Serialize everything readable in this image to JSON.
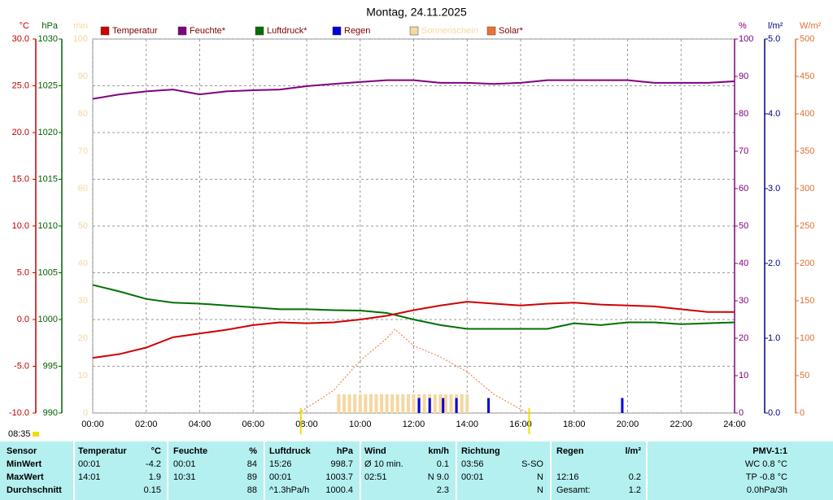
{
  "chart_data": {
    "type": "line",
    "title": "Montag, 24.11.2025",
    "x": [
      0,
      1,
      2,
      3,
      4,
      5,
      6,
      7,
      8,
      9,
      10,
      11,
      12,
      13,
      14,
      15,
      16,
      17,
      18,
      19,
      20,
      21,
      22,
      23,
      24
    ],
    "xlim": [
      0,
      24
    ],
    "xticks": [
      {
        "value": 0,
        "label": "00:00"
      },
      {
        "value": 2,
        "label": "02:00"
      },
      {
        "value": 4,
        "label": "04:00"
      },
      {
        "value": 6,
        "label": "06:00"
      },
      {
        "value": 8,
        "label": "08:00"
      },
      {
        "value": 10,
        "label": "10:00"
      },
      {
        "value": 12,
        "label": "12:00"
      },
      {
        "value": 14,
        "label": "14:00"
      },
      {
        "value": 16,
        "label": "16:00"
      },
      {
        "value": 18,
        "label": "18:00"
      },
      {
        "value": 20,
        "label": "20:00"
      },
      {
        "value": 22,
        "label": "22:00"
      },
      {
        "value": 24,
        "label": "24:00"
      }
    ],
    "ylabel": "°C",
    "ylim": [
      -10,
      30
    ],
    "yticks": [
      {
        "value": 30,
        "label": "30.0"
      },
      {
        "value": 25,
        "label": "25.0"
      },
      {
        "value": 20,
        "label": "20.0"
      },
      {
        "value": 15,
        "label": "15.0"
      },
      {
        "value": 10,
        "label": "10.0"
      },
      {
        "value": 5,
        "label": "5.0"
      },
      {
        "value": 0,
        "label": "0.0"
      },
      {
        "value": -5,
        "label": "-5.0"
      },
      {
        "value": -10,
        "label": "-10.0"
      }
    ],
    "y2label": "hPa",
    "y2lim": [
      990,
      1030
    ],
    "y2ticks": [
      1030,
      1025,
      1020,
      1015,
      1010,
      1005,
      1000,
      995,
      990
    ],
    "y3label": "min",
    "y3lim": [
      0,
      100
    ],
    "y3ticks": [
      100,
      90,
      80,
      70,
      60,
      50,
      40,
      30,
      20,
      10,
      0
    ],
    "y4label": "%",
    "y4lim": [
      0,
      100
    ],
    "y4ticks": [
      100,
      90,
      80,
      70,
      60,
      50,
      40,
      30,
      20,
      10,
      0
    ],
    "y5label": "l/m²",
    "y5lim": [
      0,
      5
    ],
    "y5ticks": [
      {
        "value": 5,
        "label": "5.0"
      },
      {
        "value": 4,
        "label": "4.0"
      },
      {
        "value": 3,
        "label": "3.0"
      },
      {
        "value": 2,
        "label": "2.0"
      },
      {
        "value": 1,
        "label": "1.0"
      },
      {
        "value": 0,
        "label": "0.0"
      }
    ],
    "y6label": "W/m²",
    "y6lim": [
      0,
      500
    ],
    "y6ticks": [
      500,
      450,
      400,
      350,
      300,
      250,
      200,
      150,
      100,
      50,
      0
    ],
    "grid": true,
    "series": [
      {
        "name": "Temperatur",
        "color": "#d00000",
        "axis": "y",
        "type": "line",
        "values": [
          -4.1,
          -3.7,
          -3.0,
          -1.9,
          -1.5,
          -1.1,
          -0.6,
          -0.3,
          -0.4,
          -0.3,
          0.0,
          0.4,
          1.0,
          1.5,
          1.9,
          1.7,
          1.5,
          1.7,
          1.8,
          1.6,
          1.5,
          1.4,
          1.1,
          0.8,
          0.8
        ]
      },
      {
        "name": "Feuchte*",
        "color": "#800080",
        "axis": "y4",
        "type": "line",
        "values": [
          84,
          85.2,
          86,
          86.5,
          85.2,
          86,
          86.3,
          86.5,
          87.4,
          88,
          88.5,
          89,
          89,
          88.3,
          88.3,
          88,
          88.3,
          89,
          89,
          89,
          89,
          88.3,
          88.3,
          88.3,
          88.7
        ]
      },
      {
        "name": "Luftdruck*",
        "color": "#007000",
        "axis": "y2",
        "type": "line",
        "values": [
          1003.7,
          1003.0,
          1002.2,
          1001.8,
          1001.7,
          1001.5,
          1001.3,
          1001.1,
          1001.1,
          1001.0,
          1000.96,
          1000.7,
          1000.0,
          999.4,
          999.0,
          999.0,
          999.0,
          999.0,
          999.6,
          999.4,
          999.7,
          999.7,
          999.5,
          999.6,
          999.7
        ]
      },
      {
        "name": "Regen",
        "color": "#0000e0",
        "axis": "y5",
        "type": "bar",
        "x": [
          12.2,
          12.6,
          13.1,
          13.6,
          14.8,
          19.8
        ],
        "values": [
          0.2,
          0.2,
          0.2,
          0.2,
          0.2,
          0.2
        ]
      },
      {
        "name": "Sonnenschein",
        "color": "#f5d7a0",
        "axis": "y3",
        "type": "bar",
        "x": [
          9.2,
          9.4,
          9.6,
          9.8,
          10.0,
          10.2,
          10.4,
          10.6,
          10.8,
          11.0,
          11.2,
          11.4,
          11.6,
          11.8,
          12.0,
          12.2,
          12.4,
          12.6,
          12.8,
          13.0,
          13.2,
          13.4,
          13.6,
          13.8,
          14.0
        ],
        "values": [
          5,
          5,
          5,
          5,
          5,
          5,
          5,
          5,
          5,
          5,
          5,
          5,
          5,
          5,
          5,
          5,
          5,
          5,
          5,
          5,
          5,
          5,
          5,
          5,
          5
        ]
      },
      {
        "name": "Solar*",
        "color": "#f07030",
        "axis": "y6",
        "type": "line",
        "dash": true,
        "x": [
          7.7,
          9,
          10,
          11,
          11.3,
          12,
          13,
          14,
          15,
          16,
          16.3
        ],
        "values": [
          0,
          30,
          70,
          100,
          112,
          90,
          75,
          55,
          25,
          5,
          0
        ]
      }
    ],
    "sun_markers": [
      7.78,
      16.32
    ]
  },
  "time_label": "08:35",
  "table": {
    "header": [
      "Sensor",
      "Temperatur",
      "°C",
      "Feuchte",
      "%",
      "Luftdruck",
      "hPa",
      "Wind",
      "km/h",
      "Richtung",
      null,
      "Regen",
      "l/m²",
      "PMV-1:1"
    ],
    "rows": [
      [
        "MinWert",
        "00:01",
        "-4.2",
        "00:01",
        "84",
        "15:26",
        "998.7",
        "Ø 10 min.",
        "0.1",
        "03:56",
        "S-SO",
        null,
        null,
        "WC 0.8 °C"
      ],
      [
        "MaxWert",
        "14:01",
        "1.9",
        "10:31",
        "89",
        "00:01",
        "1003.7",
        "02:51",
        "N 9.0",
        "00:01",
        "N",
        "12:16",
        "0.2",
        "TP -0.8 °C"
      ],
      [
        "Durchschnitt",
        null,
        "0.15",
        null,
        "88",
        "^1.3hPa/h",
        "1000.4",
        null,
        "2.3",
        null,
        "N",
        "Gesamt:",
        "1.2",
        "0.0hPa/3h"
      ]
    ]
  }
}
